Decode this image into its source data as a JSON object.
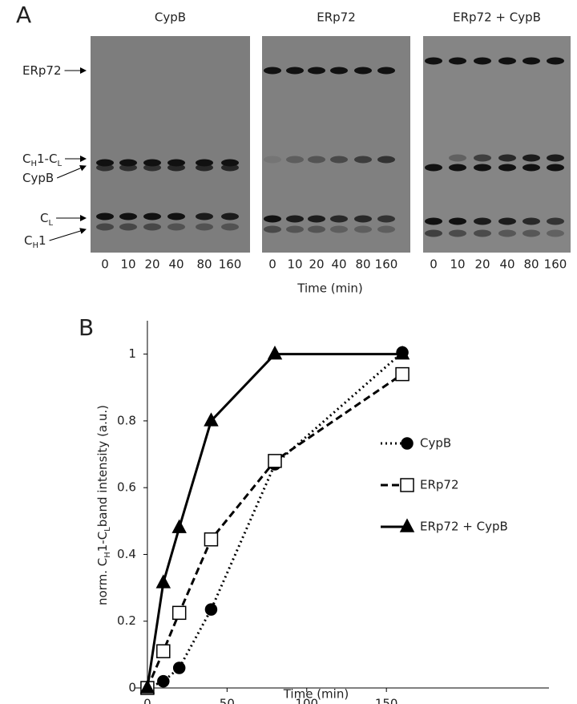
{
  "panel_a": {
    "label": "A",
    "gels": [
      {
        "title": "CypB",
        "lanes": [
          "0",
          "10",
          "20",
          "40",
          "80",
          "160"
        ]
      },
      {
        "title": "ERp72",
        "lanes": [
          "0",
          "10",
          "20",
          "40",
          "80",
          "160"
        ]
      },
      {
        "title": "ERp72 + CypB",
        "lanes": [
          "0",
          "10",
          "20",
          "40",
          "80",
          "160"
        ]
      }
    ],
    "band_labels": [
      [
        {
          "text": "ERp72"
        }
      ],
      [
        {
          "text": "C"
        },
        {
          "text": "H",
          "sub": true
        },
        {
          "text": "1-C"
        },
        {
          "text": "L",
          "sub": true
        }
      ],
      [
        {
          "text": "CypB"
        }
      ],
      [
        {
          "text": "C"
        },
        {
          "text": "L",
          "sub": true
        }
      ],
      [
        {
          "text": "C"
        },
        {
          "text": "H",
          "sub": true
        },
        {
          "text": "1"
        }
      ]
    ],
    "x_label": "Time (min)"
  },
  "panel_b_label": "B",
  "chart_data": {
    "type": "line",
    "x_label": "Time (min)",
    "y_label": [
      {
        "text": "norm. C"
      },
      {
        "text": "H",
        "sub": true
      },
      {
        "text": "1-C"
      },
      {
        "text": "L",
        "sub": true
      },
      {
        "text": "band intensity  (a.u.)"
      }
    ],
    "x": [
      0,
      10,
      20,
      40,
      80,
      160
    ],
    "series": [
      {
        "name": "CypB",
        "color": "#000000",
        "dash": "dotted",
        "marker": "circle",
        "marker_fill": "#000000",
        "values": [
          0,
          0.02,
          0.06,
          0.235,
          0.67,
          1.005
        ]
      },
      {
        "name": "ERp72",
        "color": "#000000",
        "dash": "dashed",
        "marker": "square",
        "marker_fill": "#ffffff",
        "values": [
          0,
          0.11,
          0.225,
          0.445,
          0.68,
          0.94
        ]
      },
      {
        "name": "ERp72 + CypB",
        "color": "#000000",
        "dash": "solid",
        "marker": "triangle",
        "marker_fill": "#000000",
        "values": [
          0,
          0.315,
          0.48,
          0.8,
          1.0,
          1.0
        ]
      }
    ],
    "xlim": [
      -8,
      252
    ],
    "xticks": [
      0,
      50,
      100,
      150
    ],
    "ylim": [
      0,
      1.1
    ],
    "yticks": [
      0,
      0.2,
      0.4,
      0.6,
      0.8,
      1
    ],
    "legend": "right"
  }
}
